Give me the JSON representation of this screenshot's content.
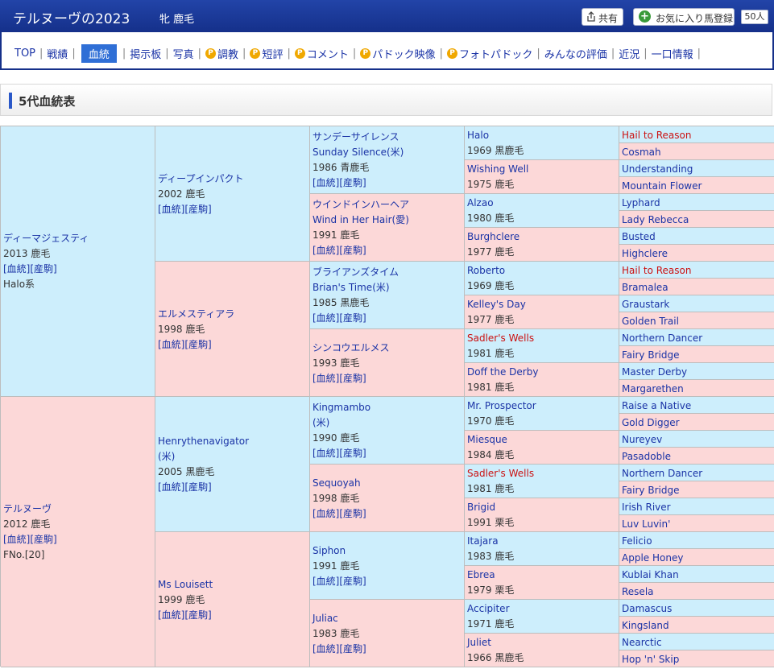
{
  "header": {
    "title": "テルヌーヴの2023",
    "subtitle": "牝 鹿毛",
    "share_label": "共有",
    "favorite_label": "お気に入り馬登録",
    "favorite_count": "50人"
  },
  "nav": {
    "items": [
      "TOP",
      "戦績",
      "血統",
      "掲示板",
      "写真",
      "調教",
      "短評",
      "コメント",
      "パドック映像",
      "フォトパドック",
      "みんなの評価",
      "近況",
      "一口情報"
    ]
  },
  "section_title": "5代血統表",
  "links": {
    "pedigree": "[血統]",
    "farm": "[産駒]"
  },
  "g1": [
    {
      "name": "ディーマジェスティ",
      "info": "2013 鹿毛",
      "extra": "Halo系"
    },
    {
      "name": "テルヌーヴ",
      "info": "2012 鹿毛",
      "extra": "FNo.[20]"
    }
  ],
  "g2": [
    {
      "name": "ディープインパクト",
      "info": "2002 鹿毛"
    },
    {
      "name": "エルメスティアラ",
      "info": "1998 鹿毛"
    },
    {
      "name": "Henrythenavigator",
      "name2": "(米)",
      "info": "2005 黒鹿毛"
    },
    {
      "name": "Ms Louisett",
      "info": "1999 鹿毛"
    }
  ],
  "g3": [
    {
      "name": "サンデーサイレンス",
      "name2": "Sunday Silence(米)",
      "info": "1986 青鹿毛"
    },
    {
      "name": "ウインドインハーヘア",
      "name2": "Wind in Her Hair(愛)",
      "info": "1991 鹿毛"
    },
    {
      "name": "ブライアンズタイム",
      "name2": "Brian's Time(米)",
      "info": "1985 黒鹿毛"
    },
    {
      "name": "シンコウエルメス",
      "info": "1993 鹿毛"
    },
    {
      "name": "Kingmambo",
      "name2": "(米)",
      "info": "1990 鹿毛"
    },
    {
      "name": "Sequoyah",
      "info": "1998 鹿毛"
    },
    {
      "name": "Siphon",
      "info": "1991 鹿毛"
    },
    {
      "name": "Juliac",
      "info": "1983 鹿毛"
    }
  ],
  "g4": [
    {
      "name": "Halo",
      "info": "1969 黒鹿毛"
    },
    {
      "name": "Wishing Well",
      "info": "1975 鹿毛"
    },
    {
      "name": "Alzao",
      "info": "1980 鹿毛"
    },
    {
      "name": "Burghclere",
      "info": "1977 鹿毛"
    },
    {
      "name": "Roberto",
      "info": "1969 鹿毛"
    },
    {
      "name": "Kelley's Day",
      "info": "1977 鹿毛"
    },
    {
      "name": "Sadler's Wells",
      "info": "1981 鹿毛"
    },
    {
      "name": "Doff the Derby",
      "info": "1981 鹿毛"
    },
    {
      "name": "Mr. Prospector",
      "info": "1970 鹿毛"
    },
    {
      "name": "Miesque",
      "info": "1984 鹿毛"
    },
    {
      "name": "Sadler's Wells",
      "info": "1981 鹿毛"
    },
    {
      "name": "Brigid",
      "info": "1991 栗毛"
    },
    {
      "name": "Itajara",
      "info": "1983 鹿毛"
    },
    {
      "name": "Ebrea",
      "info": "1979 栗毛"
    },
    {
      "name": "Accipiter",
      "info": "1971 鹿毛"
    },
    {
      "name": "Juliet",
      "info": "1966 黒鹿毛"
    }
  ],
  "g5": [
    "Hail to Reason",
    "Cosmah",
    "Understanding",
    "Mountain Flower",
    "Lyphard",
    "Lady Rebecca",
    "Busted",
    "Highclere",
    "Hail to Reason",
    "Bramalea",
    "Graustark",
    "Golden Trail",
    "Northern Dancer",
    "Fairy Bridge",
    "Master Derby",
    "Margarethen",
    "Raise a Native",
    "Gold Digger",
    "Nureyev",
    "Pasadoble",
    "Northern Dancer",
    "Fairy Bridge",
    "Irish River",
    "Luv Luvin'",
    "Felicio",
    "Apple Honey",
    "Kublai Khan",
    "Resela",
    "Damascus",
    "Kingsland",
    "Nearctic",
    "Hop 'n' Skip"
  ],
  "colors": {
    "header_bg": "#15308a",
    "male_bg": "#cdeefc",
    "female_bg": "#fcd8d8",
    "link": "#1a33a6",
    "highlight_red": "#cc1111",
    "active_tab": "#2f6fd6"
  },
  "icons": {
    "share": "share-icon",
    "favorite": "plus-circle-icon",
    "premium": "premium-p-icon"
  }
}
